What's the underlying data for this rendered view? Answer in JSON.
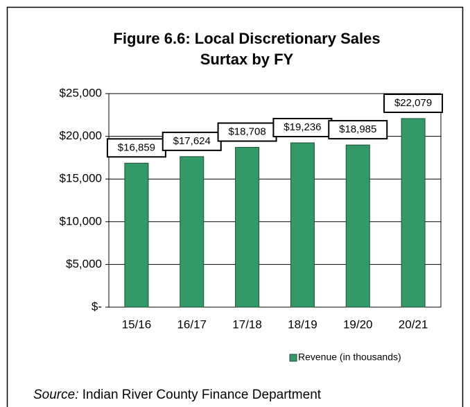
{
  "chart_data": {
    "type": "bar",
    "title": "Figure 6.6: Local Discretionary Sales",
    "subtitle": "Surtax by FY",
    "categories": [
      "15/16",
      "16/17",
      "17/18",
      "18/19",
      "19/20",
      "20/21"
    ],
    "series": [
      {
        "name": "Revenue (in thousands)",
        "color": "#339966",
        "values": [
          16859,
          17624,
          18708,
          19236,
          18985,
          22079
        ],
        "value_labels": [
          "$16,859",
          "$17,624",
          "$18,708",
          "$19,236",
          "$18,985",
          "$22,079"
        ]
      }
    ],
    "ylim": [
      0,
      25000
    ],
    "yticks": [
      {
        "value": 0,
        "label": "$-"
      },
      {
        "value": 5000,
        "label": "$5,000"
      },
      {
        "value": 10000,
        "label": "$10,000"
      },
      {
        "value": 15000,
        "label": "$15,000"
      },
      {
        "value": 20000,
        "label": "$20,000"
      },
      {
        "value": 25000,
        "label": "$25,000"
      }
    ],
    "grid": true,
    "legend": "bottom-right"
  },
  "source_label": "Source:",
  "source": "Indian River County Finance Department"
}
